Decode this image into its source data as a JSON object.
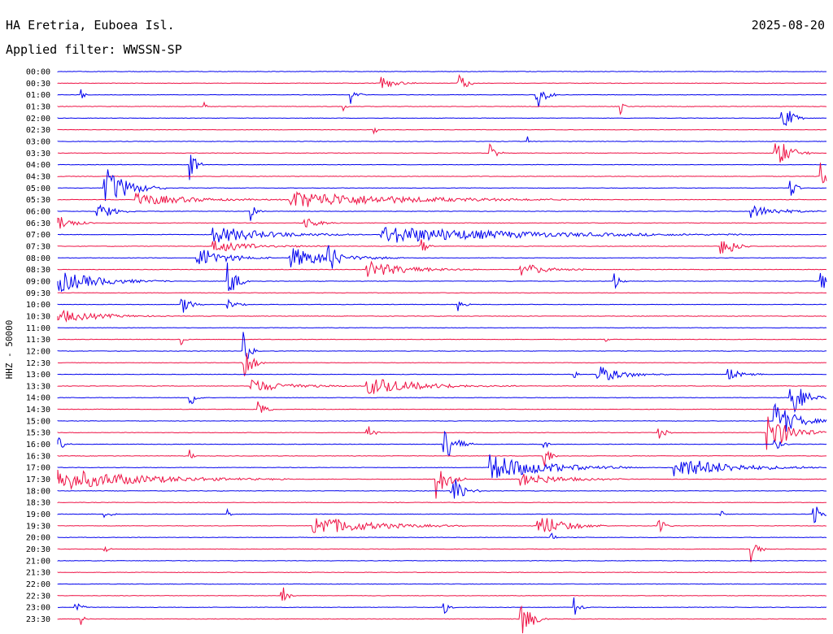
{
  "header": {
    "station": "HA Eretria, Euboea Isl.",
    "date": "2025-08-20",
    "filter": "Applied filter: WWSSN-SP",
    "ylabel": "HHZ - 50000"
  },
  "chart_data": {
    "type": "line",
    "title": "HA Eretria, Euboea Isl.",
    "xlabel": "",
    "ylabel": "HHZ - 50000",
    "colors": {
      "a": "#0000ee",
      "b": "#ee1144"
    },
    "rows": [
      {
        "time": "00:00",
        "color": "a",
        "events": []
      },
      {
        "time": "00:30",
        "color": "b",
        "events": [
          {
            "x": 0.42,
            "amp": 0.3,
            "dur": 0.05
          },
          {
            "x": 0.52,
            "amp": 0.9,
            "dur": 0.02
          }
        ]
      },
      {
        "time": "01:00",
        "color": "a",
        "events": [
          {
            "x": 0.03,
            "amp": 0.4,
            "dur": 0.01
          },
          {
            "x": 0.38,
            "amp": 0.5,
            "dur": 0.02
          },
          {
            "x": 0.62,
            "amp": 1.0,
            "dur": 0.03
          }
        ]
      },
      {
        "time": "01:30",
        "color": "b",
        "events": [
          {
            "x": 0.19,
            "amp": 0.5,
            "dur": 0.01
          },
          {
            "x": 0.37,
            "amp": 0.3,
            "dur": 0.01
          },
          {
            "x": 0.73,
            "amp": 0.5,
            "dur": 0.01
          }
        ]
      },
      {
        "time": "02:00",
        "color": "a",
        "events": [
          {
            "x": 0.94,
            "amp": 1.0,
            "dur": 0.03
          }
        ]
      },
      {
        "time": "02:30",
        "color": "b",
        "events": [
          {
            "x": 0.41,
            "amp": 0.3,
            "dur": 0.01
          }
        ]
      },
      {
        "time": "03:00",
        "color": "a",
        "events": [
          {
            "x": 0.61,
            "amp": 0.3,
            "dur": 0.01
          }
        ]
      },
      {
        "time": "03:30",
        "color": "b",
        "events": [
          {
            "x": 0.56,
            "amp": 0.6,
            "dur": 0.02
          },
          {
            "x": 0.93,
            "amp": 0.9,
            "dur": 0.05
          }
        ]
      },
      {
        "time": "04:00",
        "color": "a",
        "events": [
          {
            "x": 0.17,
            "amp": 1.0,
            "dur": 0.02
          }
        ]
      },
      {
        "time": "04:30",
        "color": "b",
        "events": [
          {
            "x": 0.99,
            "amp": 1.0,
            "dur": 0.02
          }
        ]
      },
      {
        "time": "05:00",
        "color": "a",
        "events": [
          {
            "x": 0.06,
            "amp": 1.0,
            "dur": 0.08
          },
          {
            "x": 0.95,
            "amp": 0.6,
            "dur": 0.02
          }
        ]
      },
      {
        "time": "05:30",
        "color": "b",
        "events": [
          {
            "x": 0.1,
            "amp": 0.3,
            "dur": 0.2
          },
          {
            "x": 0.3,
            "amp": 0.4,
            "dur": 0.4
          }
        ]
      },
      {
        "time": "06:00",
        "color": "a",
        "events": [
          {
            "x": 0.05,
            "amp": 0.5,
            "dur": 0.05
          },
          {
            "x": 0.25,
            "amp": 0.5,
            "dur": 0.02
          },
          {
            "x": 0.9,
            "amp": 0.3,
            "dur": 0.1
          }
        ]
      },
      {
        "time": "06:30",
        "color": "b",
        "events": [
          {
            "x": 0.0,
            "amp": 0.4,
            "dur": 0.05
          },
          {
            "x": 0.32,
            "amp": 0.3,
            "dur": 0.05
          }
        ]
      },
      {
        "time": "07:00",
        "color": "a",
        "events": [
          {
            "x": 0.2,
            "amp": 0.4,
            "dur": 0.2
          },
          {
            "x": 0.42,
            "amp": 0.4,
            "dur": 0.5
          }
        ]
      },
      {
        "time": "07:30",
        "color": "b",
        "events": [
          {
            "x": 0.2,
            "amp": 0.3,
            "dur": 0.15
          },
          {
            "x": 0.47,
            "amp": 0.6,
            "dur": 0.02
          },
          {
            "x": 0.86,
            "amp": 0.8,
            "dur": 0.04
          }
        ]
      },
      {
        "time": "08:00",
        "color": "a",
        "events": [
          {
            "x": 0.18,
            "amp": 0.5,
            "dur": 0.1
          },
          {
            "x": 0.3,
            "amp": 0.5,
            "dur": 0.15
          },
          {
            "x": 0.35,
            "amp": 1.0,
            "dur": 0.03
          }
        ]
      },
      {
        "time": "08:30",
        "color": "b",
        "events": [
          {
            "x": 0.4,
            "amp": 0.4,
            "dur": 0.15
          },
          {
            "x": 0.6,
            "amp": 0.3,
            "dur": 0.1
          }
        ]
      },
      {
        "time": "09:00",
        "color": "a",
        "events": [
          {
            "x": 0.0,
            "amp": 0.5,
            "dur": 0.15
          },
          {
            "x": 0.22,
            "amp": 1.0,
            "dur": 0.03
          },
          {
            "x": 0.72,
            "amp": 0.6,
            "dur": 0.02
          },
          {
            "x": 0.99,
            "amp": 1.0,
            "dur": 0.02
          }
        ]
      },
      {
        "time": "09:30",
        "color": "b",
        "events": []
      },
      {
        "time": "10:00",
        "color": "a",
        "events": [
          {
            "x": 0.16,
            "amp": 0.5,
            "dur": 0.03
          },
          {
            "x": 0.22,
            "amp": 0.3,
            "dur": 0.03
          },
          {
            "x": 0.52,
            "amp": 0.3,
            "dur": 0.02
          }
        ]
      },
      {
        "time": "10:30",
        "color": "b",
        "events": [
          {
            "x": 0.0,
            "amp": 0.3,
            "dur": 0.15
          }
        ]
      },
      {
        "time": "11:00",
        "color": "a",
        "events": []
      },
      {
        "time": "11:30",
        "color": "b",
        "events": [
          {
            "x": 0.16,
            "amp": 0.4,
            "dur": 0.01
          },
          {
            "x": 0.71,
            "amp": 0.3,
            "dur": 0.01
          }
        ]
      },
      {
        "time": "12:00",
        "color": "a",
        "events": [
          {
            "x": 0.24,
            "amp": 1.0,
            "dur": 0.02
          }
        ]
      },
      {
        "time": "12:30",
        "color": "b",
        "events": [
          {
            "x": 0.24,
            "amp": 1.0,
            "dur": 0.03
          }
        ]
      },
      {
        "time": "13:00",
        "color": "a",
        "events": [
          {
            "x": 0.67,
            "amp": 0.5,
            "dur": 0.01
          },
          {
            "x": 0.7,
            "amp": 0.4,
            "dur": 0.1
          },
          {
            "x": 0.87,
            "amp": 0.3,
            "dur": 0.05
          }
        ]
      },
      {
        "time": "13:30",
        "color": "b",
        "events": [
          {
            "x": 0.25,
            "amp": 0.3,
            "dur": 0.15
          },
          {
            "x": 0.4,
            "amp": 0.4,
            "dur": 0.2
          }
        ]
      },
      {
        "time": "14:00",
        "color": "a",
        "events": [
          {
            "x": 0.17,
            "amp": 0.6,
            "dur": 0.02
          },
          {
            "x": 0.95,
            "amp": 1.0,
            "dur": 0.05
          }
        ]
      },
      {
        "time": "14:30",
        "color": "b",
        "events": [
          {
            "x": 0.26,
            "amp": 0.6,
            "dur": 0.02
          }
        ]
      },
      {
        "time": "15:00",
        "color": "a",
        "events": [
          {
            "x": 0.93,
            "amp": 1.0,
            "dur": 0.07
          }
        ]
      },
      {
        "time": "15:30",
        "color": "b",
        "events": [
          {
            "x": 0.4,
            "amp": 0.6,
            "dur": 0.02
          },
          {
            "x": 0.78,
            "amp": 0.5,
            "dur": 0.02
          },
          {
            "x": 0.92,
            "amp": 1.0,
            "dur": 0.08
          }
        ]
      },
      {
        "time": "16:00",
        "color": "a",
        "events": [
          {
            "x": 0.0,
            "amp": 0.4,
            "dur": 0.02
          },
          {
            "x": 0.5,
            "amp": 1.0,
            "dur": 0.04
          },
          {
            "x": 0.63,
            "amp": 0.8,
            "dur": 0.01
          },
          {
            "x": 0.93,
            "amp": 0.5,
            "dur": 0.02
          }
        ]
      },
      {
        "time": "16:30",
        "color": "b",
        "events": [
          {
            "x": 0.17,
            "amp": 0.5,
            "dur": 0.01
          },
          {
            "x": 0.63,
            "amp": 0.9,
            "dur": 0.02
          }
        ]
      },
      {
        "time": "17:00",
        "color": "a",
        "events": [
          {
            "x": 0.56,
            "amp": 0.6,
            "dur": 0.2
          },
          {
            "x": 0.8,
            "amp": 0.5,
            "dur": 0.2
          }
        ]
      },
      {
        "time": "17:30",
        "color": "b",
        "events": [
          {
            "x": 0.0,
            "amp": 0.5,
            "dur": 0.3
          },
          {
            "x": 0.49,
            "amp": 1.0,
            "dur": 0.04
          },
          {
            "x": 0.6,
            "amp": 0.3,
            "dur": 0.15
          }
        ]
      },
      {
        "time": "18:00",
        "color": "a",
        "events": [
          {
            "x": 0.51,
            "amp": 0.9,
            "dur": 0.04
          }
        ]
      },
      {
        "time": "18:30",
        "color": "b",
        "events": []
      },
      {
        "time": "19:00",
        "color": "a",
        "events": [
          {
            "x": 0.06,
            "amp": 0.3,
            "dur": 0.02
          },
          {
            "x": 0.22,
            "amp": 0.6,
            "dur": 0.01
          },
          {
            "x": 0.86,
            "amp": 0.4,
            "dur": 0.01
          },
          {
            "x": 0.98,
            "amp": 0.9,
            "dur": 0.02
          }
        ]
      },
      {
        "time": "19:30",
        "color": "b",
        "events": [
          {
            "x": 0.33,
            "amp": 0.5,
            "dur": 0.2
          },
          {
            "x": 0.62,
            "amp": 0.6,
            "dur": 0.1
          },
          {
            "x": 0.78,
            "amp": 0.6,
            "dur": 0.02
          }
        ]
      },
      {
        "time": "20:00",
        "color": "a",
        "events": [
          {
            "x": 0.64,
            "amp": 0.6,
            "dur": 0.01
          }
        ]
      },
      {
        "time": "20:30",
        "color": "b",
        "events": [
          {
            "x": 0.06,
            "amp": 0.4,
            "dur": 0.01
          },
          {
            "x": 0.9,
            "amp": 1.0,
            "dur": 0.02
          }
        ]
      },
      {
        "time": "21:00",
        "color": "a",
        "events": []
      },
      {
        "time": "21:30",
        "color": "b",
        "events": []
      },
      {
        "time": "22:00",
        "color": "a",
        "events": []
      },
      {
        "time": "22:30",
        "color": "b",
        "events": [
          {
            "x": 0.29,
            "amp": 0.6,
            "dur": 0.02
          }
        ]
      },
      {
        "time": "23:00",
        "color": "a",
        "events": [
          {
            "x": 0.02,
            "amp": 0.5,
            "dur": 0.02
          },
          {
            "x": 0.5,
            "amp": 0.4,
            "dur": 0.02
          },
          {
            "x": 0.67,
            "amp": 0.5,
            "dur": 0.02
          }
        ]
      },
      {
        "time": "23:30",
        "color": "b",
        "events": [
          {
            "x": 0.03,
            "amp": 0.3,
            "dur": 0.01
          },
          {
            "x": 0.6,
            "amp": 1.0,
            "dur": 0.04
          }
        ]
      }
    ]
  }
}
